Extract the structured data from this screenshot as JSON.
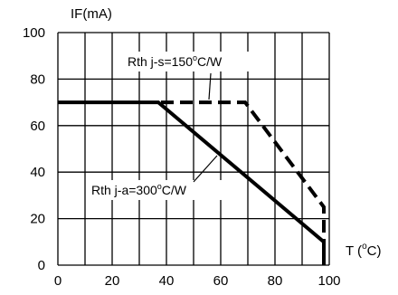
{
  "chart_data": {
    "type": "line",
    "ylabel": "IF(mA)",
    "xlabel_main": "T (",
    "xlabel_sup": "o",
    "xlabel_end": "C)",
    "xlim": [
      0,
      100
    ],
    "ylim": [
      0,
      100
    ],
    "x_ticks": [
      0,
      20,
      40,
      60,
      80,
      100
    ],
    "y_ticks": [
      0,
      20,
      40,
      60,
      80,
      100
    ],
    "grid": true,
    "series": [
      {
        "style": "solid",
        "x": [
          0,
          37,
          98,
          98
        ],
        "y": [
          70,
          70,
          10,
          0
        ]
      },
      {
        "style": "dashed",
        "x": [
          38,
          69,
          98,
          98
        ],
        "y": [
          70,
          70,
          25,
          0
        ]
      }
    ],
    "annotations": [
      {
        "main": "Rth j-s=150",
        "sup": "o",
        "end": "C/W"
      },
      {
        "main": "Rth j-a=300",
        "sup": "o",
        "end": "C/W"
      }
    ]
  }
}
